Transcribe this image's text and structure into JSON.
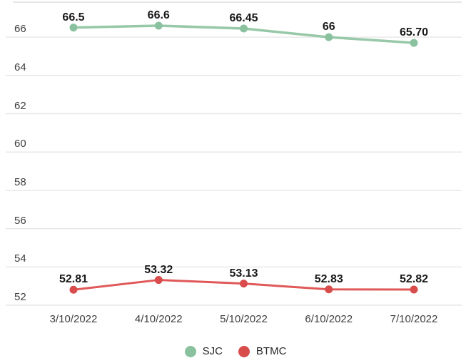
{
  "chart_data": {
    "type": "line",
    "title": "",
    "xlabel": "",
    "ylabel": "",
    "categories": [
      "3/10/2022",
      "4/10/2022",
      "5/10/2022",
      "6/10/2022",
      "7/10/2022"
    ],
    "series": [
      {
        "name": "SJC",
        "line_color": "#97C8A7",
        "marker_color": "#8AC2A0",
        "values": [
          66.5,
          66.6,
          66.45,
          66,
          65.7
        ],
        "labels": [
          "66.5",
          "66.6",
          "66.45",
          "66",
          "65.70"
        ]
      },
      {
        "name": "BTMC",
        "line_color": "#E05858",
        "marker_color": "#D84C4C",
        "values": [
          52.81,
          53.32,
          53.13,
          52.83,
          52.82
        ],
        "labels": [
          "52.81",
          "53.32",
          "53.13",
          "52.83",
          "52.82"
        ]
      }
    ],
    "ylim": [
      52,
      67.8
    ],
    "yticks": [
      66,
      64,
      62,
      60,
      58,
      56,
      54,
      52
    ],
    "grid": true,
    "legend_position": "bottom"
  },
  "colors": {
    "grid": "#E6E6E6",
    "axis_label": "#3E3E3E",
    "data_label": "#191919",
    "background": "#FFFFFF"
  }
}
